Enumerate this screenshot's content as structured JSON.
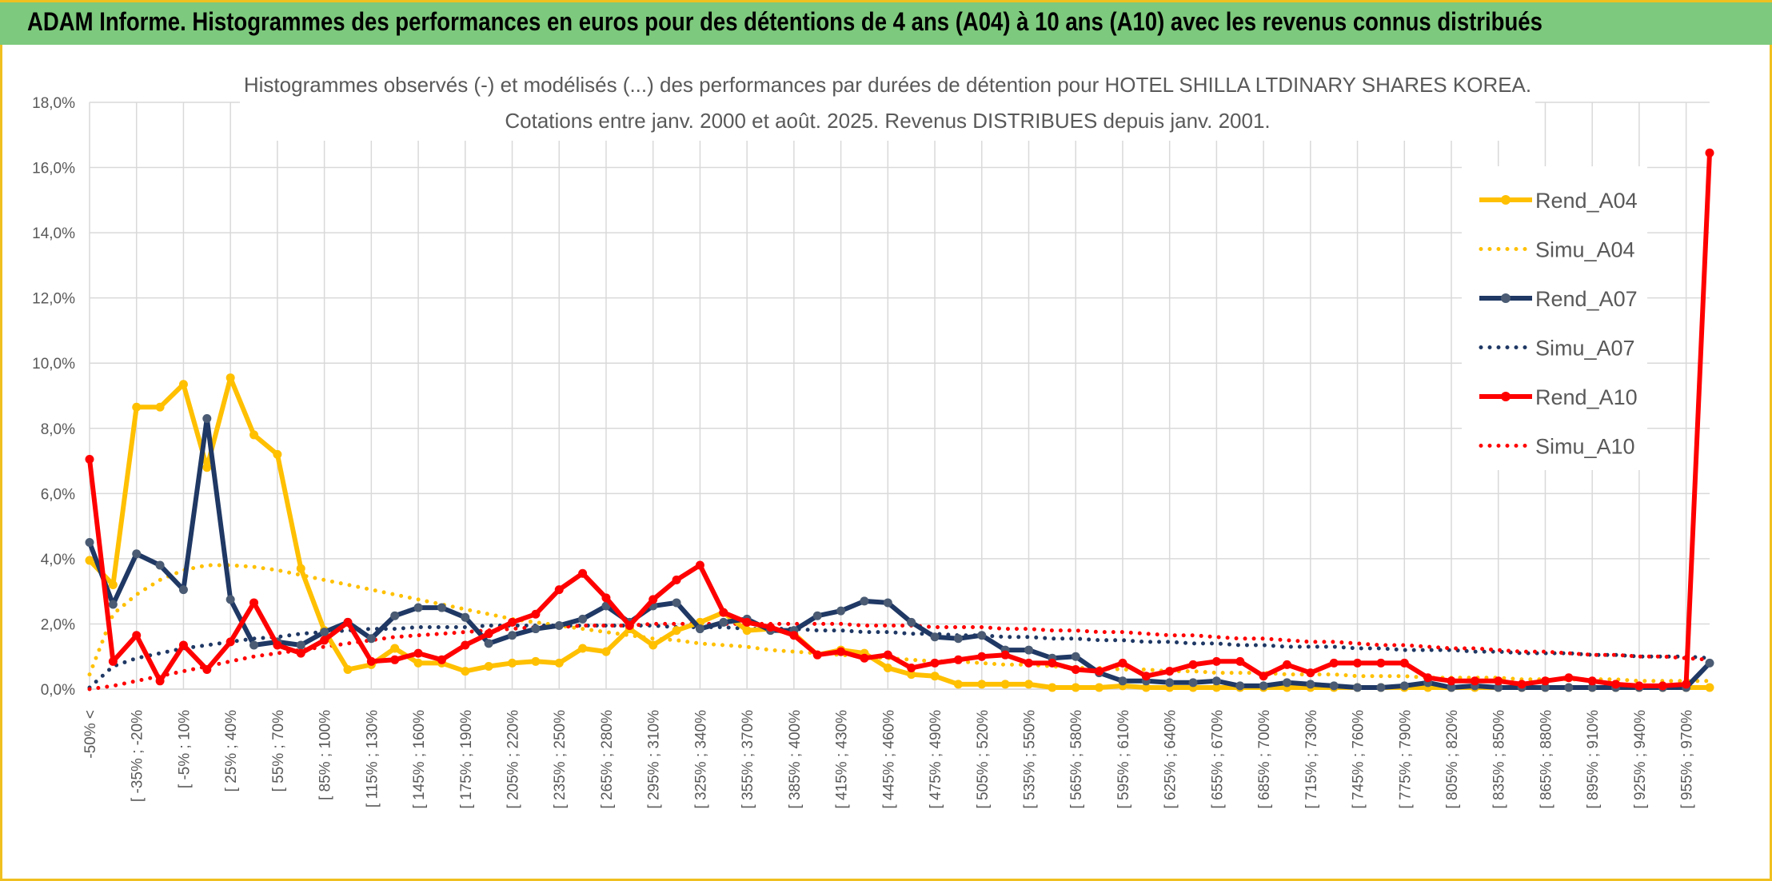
{
  "banner": {
    "title": "ADAM Informe. Histogrammes des performances en euros pour des détentions de 4 ans (A04) à 10 ans (A10) avec les revenus connus distribués"
  },
  "chart_data": {
    "type": "line",
    "title": "Histogrammes observés (-) et modélisés (...) des performances par durées de détention pour HOTEL SHILLA LTDINARY SHARES KOREA.",
    "subtitle": "Cotations entre janv. 2000 et août. 2025. Revenus DISTRIBUES depuis janv. 2001.",
    "ylim": [
      0,
      18
    ],
    "y_ticks": [
      "0,0%",
      "2,0%",
      "4,0%",
      "6,0%",
      "8,0%",
      "10,0%",
      "12,0%",
      "14,0%",
      "16,0%",
      "18,0%"
    ],
    "x_tick_labels": [
      "-50% <",
      "[ -35% ; -20%",
      "[ -5% ; 10%",
      "[ 25% ; 40%",
      "[ 55% ; 70%",
      "[ 85% ; 100%",
      "[ 115% ; 130%",
      "[ 145% ; 160%",
      "[ 175% ; 190%",
      "[ 205% ; 220%",
      "[ 235% ; 250%",
      "[ 265% ; 280%",
      "[ 295% ; 310%",
      "[ 325% ; 340%",
      "[ 355% ; 370%",
      "[ 385% ; 400%",
      "[ 415% ; 430%",
      "[ 445% ; 460%",
      "[ 475% ; 490%",
      "[ 505% ; 520%",
      "[ 535% ; 550%",
      "[ 565% ; 580%",
      "[ 595% ; 610%",
      "[ 625% ; 640%",
      "[ 655% ; 670%",
      "[ 685% ; 700%",
      "[ 715% ; 730%",
      "[ 745% ; 760%",
      "[ 775% ; 790%",
      "[ 805% ; 820%",
      "[ 835% ; 850%",
      "[ 865% ; 880%",
      "[ 895% ; 910%",
      "[ 925% ; 940%",
      "[ 955% ; 970%"
    ],
    "x_tick_every": 2,
    "grid": true,
    "legend_position": "top-right",
    "series": [
      {
        "name": "Rend_A04",
        "color": "#ffc000",
        "style": "solid-marker",
        "values": [
          3.95,
          3.2,
          8.65,
          8.65,
          9.35,
          6.8,
          9.55,
          7.8,
          7.2,
          3.7,
          1.8,
          0.6,
          0.75,
          1.25,
          0.8,
          0.8,
          0.55,
          0.7,
          0.8,
          0.85,
          0.8,
          1.25,
          1.15,
          1.85,
          1.35,
          1.8,
          2.05,
          2.35,
          1.8,
          1.85,
          1.7,
          1.05,
          1.2,
          1.1,
          0.65,
          0.45,
          0.4,
          0.15,
          0.15,
          0.15,
          0.15,
          0.05,
          0.05,
          0.05,
          0.1,
          0.05,
          0.05,
          0.05,
          0.05,
          0.05,
          0.05,
          0.05,
          0.05,
          0.05,
          0.05,
          0.05,
          0.05,
          0.05,
          0.05,
          0.05,
          0.05,
          0.05,
          0.05,
          0.05,
          0.05,
          0.05,
          0.05,
          0.05,
          0.05,
          0.05
        ]
      },
      {
        "name": "Simu_A04",
        "color": "#ffc000",
        "style": "dotted",
        "values": [
          0.45,
          2.3,
          2.9,
          3.35,
          3.65,
          3.8,
          3.8,
          3.75,
          3.65,
          3.5,
          3.35,
          3.2,
          3.05,
          2.9,
          2.75,
          2.6,
          2.45,
          2.3,
          2.15,
          2.05,
          1.95,
          1.85,
          1.75,
          1.65,
          1.55,
          1.5,
          1.4,
          1.35,
          1.3,
          1.2,
          1.15,
          1.1,
          1.05,
          1.0,
          0.95,
          0.9,
          0.85,
          0.85,
          0.8,
          0.75,
          0.75,
          0.7,
          0.65,
          0.65,
          0.6,
          0.6,
          0.55,
          0.55,
          0.5,
          0.5,
          0.5,
          0.45,
          0.45,
          0.45,
          0.4,
          0.4,
          0.4,
          0.35,
          0.35,
          0.35,
          0.35,
          0.3,
          0.3,
          0.3,
          0.3,
          0.3,
          0.25,
          0.25,
          0.25,
          0.25
        ]
      },
      {
        "name": "Rend_A07",
        "color": "#1f3864",
        "style": "solid-marker",
        "values": [
          4.5,
          2.6,
          4.15,
          3.8,
          3.05,
          8.3,
          2.75,
          1.35,
          1.45,
          1.35,
          1.75,
          2.05,
          1.55,
          2.25,
          2.5,
          2.5,
          2.2,
          1.4,
          1.65,
          1.85,
          1.95,
          2.15,
          2.55,
          2.05,
          2.55,
          2.65,
          1.85,
          2.05,
          2.15,
          1.8,
          1.8,
          2.25,
          2.4,
          2.7,
          2.65,
          2.05,
          1.6,
          1.55,
          1.65,
          1.2,
          1.2,
          0.95,
          1.0,
          0.5,
          0.25,
          0.25,
          0.2,
          0.2,
          0.25,
          0.1,
          0.1,
          0.2,
          0.15,
          0.1,
          0.05,
          0.05,
          0.1,
          0.2,
          0.05,
          0.1,
          0.05,
          0.05,
          0.05,
          0.05,
          0.05,
          0.05,
          0.05,
          0.05,
          0.05,
          0.8
        ]
      },
      {
        "name": "Simu_A07",
        "color": "#1f3864",
        "style": "dotted",
        "values": [
          0.05,
          0.7,
          0.95,
          1.1,
          1.25,
          1.35,
          1.45,
          1.55,
          1.6,
          1.7,
          1.75,
          1.8,
          1.85,
          1.85,
          1.9,
          1.9,
          1.9,
          1.95,
          1.95,
          1.95,
          1.95,
          1.95,
          1.95,
          1.95,
          1.95,
          1.9,
          1.9,
          1.9,
          1.85,
          1.85,
          1.85,
          1.8,
          1.8,
          1.75,
          1.75,
          1.7,
          1.7,
          1.65,
          1.65,
          1.6,
          1.6,
          1.55,
          1.55,
          1.5,
          1.5,
          1.45,
          1.45,
          1.4,
          1.4,
          1.35,
          1.35,
          1.3,
          1.3,
          1.3,
          1.25,
          1.25,
          1.2,
          1.2,
          1.2,
          1.15,
          1.15,
          1.1,
          1.1,
          1.1,
          1.05,
          1.05,
          1.0,
          1.0,
          1.0,
          0.95
        ]
      },
      {
        "name": "Rend_A10",
        "color": "#ff0000",
        "style": "solid-marker",
        "values": [
          7.05,
          0.85,
          1.65,
          0.25,
          1.35,
          0.6,
          1.45,
          2.65,
          1.35,
          1.1,
          1.5,
          2.05,
          0.85,
          0.9,
          1.1,
          0.9,
          1.35,
          1.7,
          2.05,
          2.3,
          3.05,
          3.55,
          2.8,
          1.95,
          2.75,
          3.35,
          3.8,
          2.35,
          2.05,
          1.9,
          1.65,
          1.05,
          1.15,
          0.95,
          1.05,
          0.65,
          0.8,
          0.9,
          1.0,
          1.05,
          0.8,
          0.8,
          0.6,
          0.55,
          0.8,
          0.4,
          0.55,
          0.75,
          0.85,
          0.85,
          0.4,
          0.75,
          0.5,
          0.8,
          0.8,
          0.8,
          0.8,
          0.35,
          0.25,
          0.25,
          0.25,
          0.15,
          0.25,
          0.35,
          0.25,
          0.15,
          0.1,
          0.1,
          0.15,
          16.45
        ]
      },
      {
        "name": "Simu_A10",
        "color": "#ff0000",
        "style": "dotted",
        "values": [
          0.0,
          0.1,
          0.25,
          0.4,
          0.55,
          0.7,
          0.85,
          1.0,
          1.1,
          1.2,
          1.3,
          1.4,
          1.5,
          1.6,
          1.65,
          1.7,
          1.75,
          1.8,
          1.85,
          1.9,
          1.9,
          1.95,
          1.95,
          1.95,
          2.0,
          2.0,
          2.0,
          2.0,
          2.0,
          2.0,
          2.0,
          2.0,
          2.0,
          1.95,
          1.95,
          1.95,
          1.9,
          1.9,
          1.9,
          1.85,
          1.85,
          1.8,
          1.8,
          1.75,
          1.75,
          1.7,
          1.65,
          1.65,
          1.6,
          1.55,
          1.55,
          1.5,
          1.45,
          1.45,
          1.4,
          1.35,
          1.35,
          1.3,
          1.25,
          1.25,
          1.2,
          1.15,
          1.15,
          1.1,
          1.05,
          1.05,
          1.0,
          1.0,
          0.95,
          0.9
        ]
      }
    ]
  }
}
